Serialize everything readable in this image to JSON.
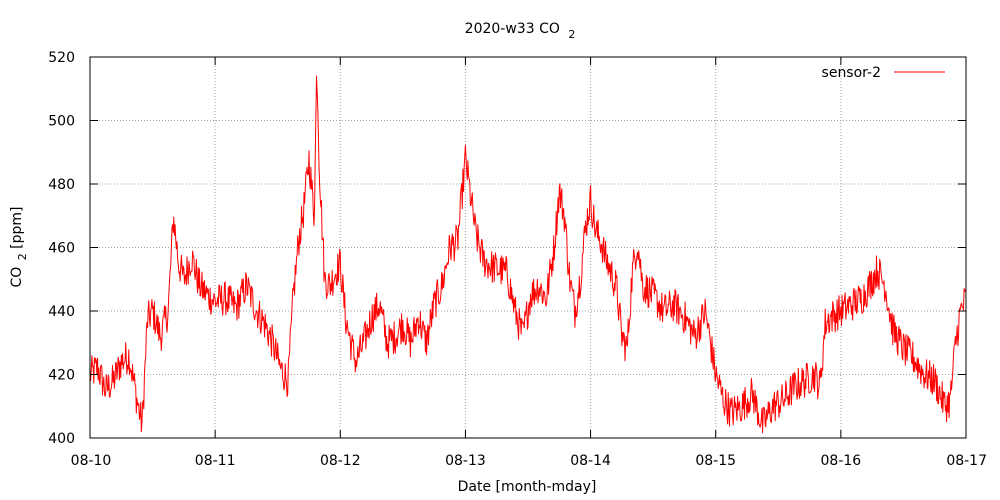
{
  "chart_data": {
    "type": "line",
    "title_main": "2020-w33 CO",
    "title_sub": "2",
    "xlabel": "Date [month-mday]",
    "ylabel_main": "CO",
    "ylabel_sub": "2",
    "ylabel_suffix": " [ppm]",
    "x_range": [
      "08-10",
      "08-17"
    ],
    "ylim": [
      400,
      520
    ],
    "x_ticks": [
      "08-10",
      "08-11",
      "08-12",
      "08-13",
      "08-14",
      "08-15",
      "08-16",
      "08-17"
    ],
    "y_ticks": [
      400,
      420,
      440,
      460,
      480,
      500,
      520
    ],
    "grid": true,
    "legend_position": "top-right",
    "colors": {
      "series": "#ff0000",
      "grid": "#a0a0a0",
      "axis": "#000000"
    },
    "series": [
      {
        "name": "sensor-2",
        "x": [
          "08-10 00:00",
          "08-10 01:30",
          "08-10 03:00",
          "08-10 04:30",
          "08-10 06:00",
          "08-10 07:30",
          "08-10 09:00",
          "08-10 10:00",
          "08-10 11:00",
          "08-10 12:00",
          "08-10 13:30",
          "08-10 15:00",
          "08-10 16:00",
          "08-10 17:00",
          "08-10 18:00",
          "08-10 19:30",
          "08-10 21:00",
          "08-10 22:30",
          "08-11 00:00",
          "08-11 02:00",
          "08-11 04:00",
          "08-11 06:00",
          "08-11 08:00",
          "08-11 09:30",
          "08-11 11:00",
          "08-11 12:30",
          "08-11 14:00",
          "08-11 15:00",
          "08-11 16:00",
          "08-11 17:00",
          "08-11 18:00",
          "08-11 19:00",
          "08-11 19:30",
          "08-11 20:00",
          "08-11 21:00",
          "08-11 22:00",
          "08-11 23:00",
          "08-12 00:00",
          "08-12 01:00",
          "08-12 02:00",
          "08-12 03:00",
          "08-12 04:30",
          "08-12 06:00",
          "08-12 07:30",
          "08-12 09:00",
          "08-12 10:30",
          "08-12 12:00",
          "08-12 13:30",
          "08-12 15:00",
          "08-12 16:30",
          "08-12 18:00",
          "08-12 19:30",
          "08-12 21:00",
          "08-12 22:30",
          "08-13 00:00",
          "08-13 01:00",
          "08-13 02:00",
          "08-13 03:30",
          "08-13 05:00",
          "08-13 06:30",
          "08-13 08:00",
          "08-13 09:30",
          "08-13 11:00",
          "08-13 12:30",
          "08-13 14:00",
          "08-13 15:30",
          "08-13 17:00",
          "08-13 18:00",
          "08-13 19:00",
          "08-13 20:00",
          "08-13 21:00",
          "08-13 22:00",
          "08-13 23:00",
          "08-14 00:00",
          "08-14 01:00",
          "08-14 02:00",
          "08-14 03:00",
          "08-14 04:00",
          "08-14 05:00",
          "08-14 06:00",
          "08-14 07:00",
          "08-14 08:00",
          "08-14 09:00",
          "08-14 10:00",
          "08-14 12:00",
          "08-14 14:00",
          "08-14 16:00",
          "08-14 18:00",
          "08-14 20:00",
          "08-14 22:00",
          "08-15 00:00",
          "08-15 01:30",
          "08-15 03:00",
          "08-15 05:00",
          "08-15 07:00",
          "08-15 09:00",
          "08-15 11:00",
          "08-15 13:00",
          "08-15 15:00",
          "08-15 17:00",
          "08-15 19:00",
          "08-15 20:00",
          "08-15 21:00",
          "08-15 22:00",
          "08-16 00:00",
          "08-16 02:00",
          "08-16 04:00",
          "08-16 05:30",
          "08-16 07:00",
          "08-16 08:30",
          "08-16 10:00",
          "08-16 12:00",
          "08-16 14:00",
          "08-16 16:00",
          "08-16 18:00",
          "08-16 20:00",
          "08-16 21:00",
          "08-16 22:00",
          "08-16 23:00",
          "08-17 00:00"
        ],
        "values": [
          420,
          422,
          415,
          418,
          424,
          426,
          412,
          404,
          437,
          440,
          432,
          440,
          470,
          455,
          450,
          457,
          448,
          445,
          443,
          444,
          441,
          448,
          440,
          436,
          430,
          422,
          418,
          445,
          462,
          472,
          488,
          470,
          518,
          485,
          450,
          448,
          452,
          455,
          438,
          430,
          424,
          430,
          438,
          442,
          430,
          432,
          436,
          430,
          438,
          430,
          442,
          448,
          460,
          462,
          488,
          476,
          464,
          456,
          454,
          453,
          452,
          440,
          432,
          445,
          448,
          444,
          460,
          478,
          470,
          450,
          440,
          450,
          466,
          475,
          465,
          462,
          456,
          452,
          447,
          432,
          428,
          452,
          462,
          448,
          445,
          440,
          442,
          438,
          432,
          440,
          420,
          412,
          408,
          410,
          414,
          404,
          410,
          412,
          416,
          418,
          420,
          416,
          436,
          438,
          440,
          442,
          444,
          448,
          453,
          448,
          434,
          428,
          425,
          420,
          418,
          410,
          412,
          430,
          440,
          444
        ]
      }
    ]
  }
}
